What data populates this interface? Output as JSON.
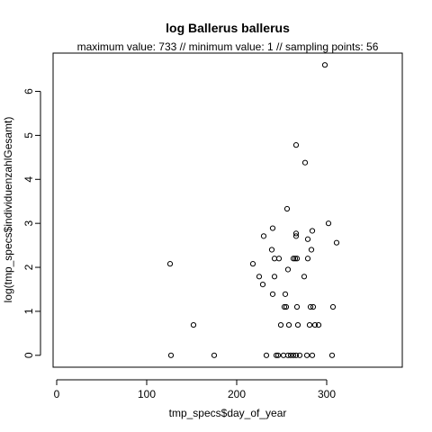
{
  "chart_data": {
    "type": "scatter",
    "title": "log Ballerus ballerus",
    "subtitle": "maximum value: 733  //  minimum value: 1  // sampling points: 56",
    "xlabel": "tmp_specs$day_of_year",
    "ylabel": "log(tmp_specs$individuenzahlGesamt)",
    "xlim": [
      -4,
      384
    ],
    "ylim": [
      -0.27,
      6.87
    ],
    "xticks": [
      0,
      100,
      200,
      300
    ],
    "yticks": [
      0,
      1,
      2,
      3,
      4,
      5,
      6
    ],
    "points": [
      [
        126,
        2.08
      ],
      [
        127,
        0
      ],
      [
        152,
        0.69
      ],
      [
        175,
        0
      ],
      [
        218,
        2.08
      ],
      [
        225,
        1.79
      ],
      [
        229,
        1.61
      ],
      [
        230,
        2.71
      ],
      [
        233,
        0
      ],
      [
        239,
        2.4
      ],
      [
        240,
        1.39
      ],
      [
        240,
        2.89
      ],
      [
        242,
        1.79
      ],
      [
        242,
        2.2
      ],
      [
        244,
        0
      ],
      [
        246,
        0
      ],
      [
        247,
        2.2
      ],
      [
        249,
        0.69
      ],
      [
        252,
        0
      ],
      [
        253,
        1.1
      ],
      [
        254,
        1.39
      ],
      [
        255,
        1.1
      ],
      [
        256,
        3.33
      ],
      [
        257,
        0
      ],
      [
        257,
        1.95
      ],
      [
        258,
        0.69
      ],
      [
        260,
        0
      ],
      [
        263,
        2.2
      ],
      [
        263,
        0
      ],
      [
        265,
        2.2
      ],
      [
        266,
        4.78
      ],
      [
        266,
        2.77
      ],
      [
        266,
        2.71
      ],
      [
        266,
        0
      ],
      [
        267,
        2.2
      ],
      [
        267,
        1.1
      ],
      [
        268,
        0.69
      ],
      [
        270,
        0
      ],
      [
        275,
        1.79
      ],
      [
        276,
        4.38
      ],
      [
        278,
        0
      ],
      [
        279,
        2.2
      ],
      [
        279,
        2.64
      ],
      [
        281,
        0.69
      ],
      [
        282,
        1.1
      ],
      [
        283,
        2.4
      ],
      [
        284,
        0
      ],
      [
        284,
        2.83
      ],
      [
        285,
        1.1
      ],
      [
        287,
        0.69
      ],
      [
        291,
        0.69
      ],
      [
        298,
        6.6
      ],
      [
        302,
        3.0
      ],
      [
        306,
        0
      ],
      [
        307,
        1.1
      ],
      [
        311,
        2.56
      ]
    ],
    "grid": false,
    "legend": "none"
  }
}
